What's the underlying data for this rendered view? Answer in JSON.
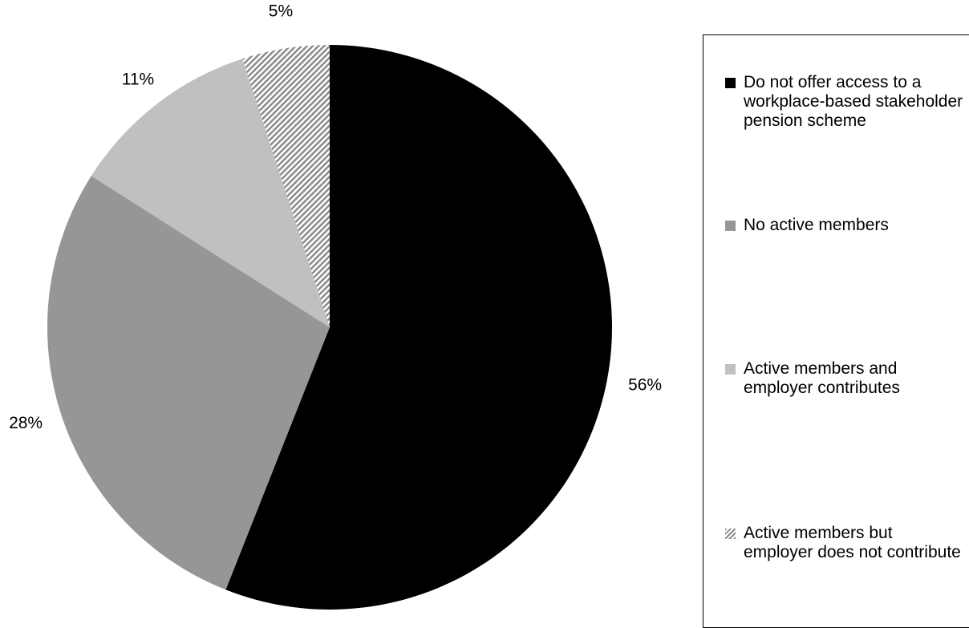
{
  "chart_data": {
    "type": "pie",
    "title": "",
    "slices": [
      {
        "label": "Do not offer access to a workplace-based stakeholder pension scheme",
        "value": 56,
        "display": "56%",
        "color": "#000000",
        "pattern": "solid"
      },
      {
        "label": "No active members",
        "value": 28,
        "display": "28%",
        "color": "#969696",
        "pattern": "solid"
      },
      {
        "label": "Active members and employer contributes",
        "value": 11,
        "display": "11%",
        "color": "#c0c0c0",
        "pattern": "solid"
      },
      {
        "label": "Active members but employer does not contribute",
        "value": 5,
        "display": "5%",
        "color": "#8c8c8c",
        "pattern": "diagonal-stripes"
      }
    ],
    "start_angle": "12 o'clock",
    "direction": "clockwise",
    "legend_position": "right"
  }
}
